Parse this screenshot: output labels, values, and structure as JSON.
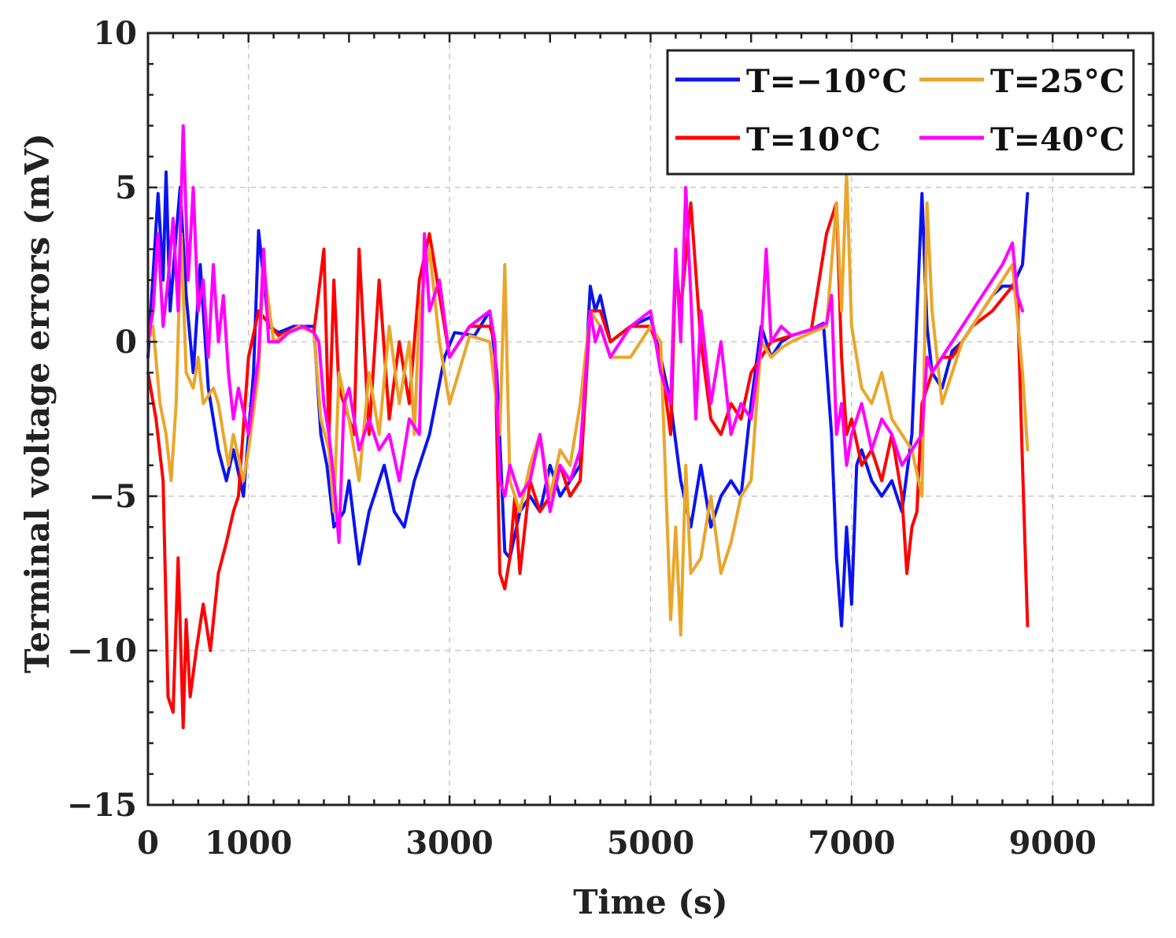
{
  "chart_data": {
    "type": "line",
    "xlabel": "Time (s)",
    "ylabel": "Terminal voltage errors (mV)",
    "xlim": [
      0,
      10000
    ],
    "ylim": [
      -15,
      10
    ],
    "xticks": [
      0,
      1000,
      3000,
      5000,
      7000,
      9000
    ],
    "xtick_labels": [
      "0",
      "1000",
      "3000",
      "5000",
      "7000",
      "9000"
    ],
    "xgrid": [
      1000,
      3000,
      5000,
      7000,
      9000
    ],
    "yticks": [
      10,
      5,
      0,
      -5,
      -10,
      -15
    ],
    "ytick_labels": [
      "10",
      "5",
      "0",
      "−5",
      "−10",
      "−15"
    ],
    "ygrid": [
      5,
      0,
      -5,
      -10
    ],
    "grid": true,
    "legend_position": "top-right",
    "series": [
      {
        "name": "T=−10°C",
        "color": "#0a14f0",
        "x": [
          0,
          100,
          150,
          180,
          220,
          280,
          320,
          380,
          450,
          520,
          600,
          700,
          780,
          850,
          950,
          1050,
          1100,
          1200,
          1300,
          1450,
          1650,
          1720,
          1780,
          1850,
          1950,
          2000,
          2100,
          2200,
          2350,
          2450,
          2550,
          2650,
          2800,
          2950,
          3050,
          3250,
          3400,
          3470,
          3550,
          3600,
          3700,
          3800,
          3900,
          4000,
          4100,
          4200,
          4300,
          4400,
          4450,
          4500,
          4600,
          4800,
          5000,
          5100,
          5200,
          5300,
          5400,
          5500,
          5600,
          5700,
          5800,
          5900,
          6000,
          6100,
          6200,
          6300,
          6400,
          6600,
          6720,
          6800,
          6850,
          6900,
          6950,
          7000,
          7050,
          7100,
          7200,
          7300,
          7400,
          7500,
          7600,
          7700,
          7750,
          7800,
          7900,
          8000,
          8100,
          8200,
          8300,
          8400,
          8500,
          8600,
          8700,
          8750
        ],
        "y": [
          -0.5,
          4.8,
          2.0,
          5.5,
          1.0,
          3.5,
          5.0,
          1.5,
          -1.0,
          2.5,
          -1.5,
          -3.5,
          -4.5,
          -3.5,
          -5.0,
          -1.0,
          3.6,
          0.5,
          0.3,
          0.5,
          0.5,
          -3.0,
          -4.0,
          -6.0,
          -5.5,
          -4.5,
          -7.2,
          -5.5,
          -4.0,
          -5.5,
          -6.0,
          -4.5,
          -3.0,
          -0.5,
          0.3,
          0.2,
          1.0,
          -1.0,
          -6.8,
          -7.0,
          -5.5,
          -5.0,
          -5.5,
          -4.0,
          -5.0,
          -4.5,
          -4.0,
          1.8,
          1.0,
          1.5,
          0.0,
          0.5,
          0.8,
          -0.5,
          -2.0,
          -4.5,
          -6.0,
          -4.0,
          -6.0,
          -5.0,
          -4.5,
          -5.0,
          -2.0,
          0.5,
          -0.5,
          0.0,
          0.2,
          0.4,
          0.6,
          -3.0,
          -7.0,
          -9.2,
          -6.0,
          -8.5,
          -4.0,
          -3.5,
          -4.5,
          -5.0,
          -4.5,
          -5.5,
          -3.0,
          4.8,
          0.5,
          -1.0,
          -1.5,
          -0.3,
          0.0,
          0.5,
          1.0,
          1.5,
          1.8,
          1.8,
          2.5,
          4.8
        ]
      },
      {
        "name": "T=10°C",
        "color": "#ff0000",
        "x": [
          0,
          80,
          150,
          200,
          250,
          300,
          350,
          380,
          420,
          480,
          550,
          620,
          700,
          780,
          850,
          900,
          1000,
          1100,
          1300,
          1500,
          1650,
          1750,
          1800,
          1850,
          1900,
          2000,
          2050,
          2100,
          2200,
          2300,
          2400,
          2500,
          2600,
          2700,
          2800,
          3000,
          3200,
          3400,
          3450,
          3500,
          3550,
          3600,
          3650,
          3700,
          3800,
          3900,
          4000,
          4100,
          4200,
          4300,
          4400,
          4500,
          4600,
          4800,
          5000,
          5100,
          5200,
          5250,
          5300,
          5400,
          5500,
          5600,
          5700,
          5800,
          5900,
          6000,
          6100,
          6200,
          6400,
          6600,
          6750,
          6850,
          6900,
          6950,
          7000,
          7100,
          7200,
          7300,
          7400,
          7500,
          7550,
          7600,
          7650,
          7700,
          7800,
          7900,
          8000,
          8200,
          8400,
          8600,
          8650,
          8700,
          8750
        ],
        "y": [
          -1.0,
          -2.5,
          -4.5,
          -11.5,
          -12.0,
          -7.0,
          -12.5,
          -9.0,
          -11.5,
          -10.0,
          -8.5,
          -10.0,
          -7.5,
          -6.5,
          -5.5,
          -5.0,
          -0.5,
          1.0,
          0.2,
          0.5,
          0.3,
          3.0,
          -3.0,
          2.0,
          -1.5,
          -2.5,
          -3.0,
          3.0,
          -3.0,
          2.0,
          -2.5,
          0.0,
          -2.0,
          2.0,
          3.5,
          -0.5,
          0.5,
          0.5,
          0.0,
          -7.5,
          -8.0,
          -7.0,
          -5.0,
          -7.5,
          -4.5,
          -5.5,
          -5.0,
          -4.0,
          -5.0,
          -4.5,
          1.0,
          1.0,
          0.0,
          0.5,
          0.5,
          -0.5,
          -3.0,
          2.5,
          1.0,
          4.5,
          0.0,
          -2.5,
          -3.0,
          -2.0,
          -2.5,
          -1.0,
          -0.5,
          0.0,
          0.2,
          0.4,
          3.5,
          4.5,
          -0.5,
          -3.0,
          -2.5,
          -4.0,
          -3.5,
          -4.5,
          -3.0,
          -5.0,
          -7.5,
          -6.0,
          -5.5,
          -2.0,
          -1.0,
          -0.5,
          -0.5,
          0.5,
          1.0,
          1.8,
          1.5,
          -4.0,
          -9.2
        ]
      },
      {
        "name": "T=25°C",
        "color": "#eaa62b",
        "x": [
          0,
          50,
          120,
          180,
          230,
          280,
          330,
          380,
          450,
          500,
          550,
          650,
          700,
          800,
          850,
          950,
          1000,
          1100,
          1150,
          1250,
          1350,
          1500,
          1650,
          1720,
          1800,
          1850,
          1900,
          2000,
          2100,
          2200,
          2300,
          2400,
          2500,
          2600,
          2650,
          2700,
          2800,
          2900,
          3000,
          3200,
          3400,
          3500,
          3550,
          3600,
          3700,
          3800,
          3900,
          4000,
          4100,
          4200,
          4300,
          4400,
          4500,
          4600,
          4800,
          5000,
          5100,
          5200,
          5250,
          5300,
          5350,
          5400,
          5500,
          5600,
          5700,
          5800,
          5900,
          6000,
          6100,
          6200,
          6300,
          6400,
          6600,
          6750,
          6850,
          6900,
          6950,
          7000,
          7050,
          7100,
          7200,
          7300,
          7400,
          7500,
          7600,
          7700,
          7750,
          7800,
          7900,
          8000,
          8100,
          8200,
          8300,
          8400,
          8500,
          8600,
          8700,
          8750
        ],
        "y": [
          0.0,
          0.5,
          -2.0,
          -3.0,
          -4.5,
          -2.0,
          3.5,
          -1.0,
          -1.5,
          -0.5,
          -2.0,
          -1.5,
          -2.0,
          -4.0,
          -3.0,
          -4.5,
          -3.5,
          -1.0,
          2.5,
          0.0,
          0.2,
          0.5,
          0.3,
          -2.5,
          -3.5,
          -5.5,
          -1.0,
          -2.5,
          -4.5,
          -1.0,
          -3.0,
          0.5,
          -2.0,
          0.0,
          -3.0,
          1.0,
          3.0,
          0.0,
          -2.0,
          0.2,
          0.0,
          -3.0,
          2.5,
          -4.5,
          -5.5,
          -4.0,
          -3.0,
          -5.0,
          -3.5,
          -4.0,
          -2.0,
          1.0,
          0.5,
          -0.5,
          -0.5,
          0.5,
          0.0,
          -9.0,
          -6.0,
          -9.5,
          -4.0,
          -7.5,
          -7.0,
          -5.0,
          -7.5,
          -6.5,
          -5.0,
          -4.5,
          0.0,
          -0.5,
          -0.2,
          0.0,
          0.3,
          0.5,
          4.5,
          1.0,
          5.5,
          0.5,
          -0.5,
          -1.5,
          -2.0,
          -1.0,
          -2.5,
          -3.0,
          -3.5,
          -5.0,
          4.5,
          1.0,
          -2.0,
          -1.0,
          0.0,
          0.5,
          1.0,
          1.5,
          2.0,
          2.5,
          -1.0,
          -3.5
        ]
      },
      {
        "name": "T=40°C",
        "color": "#ff00ff",
        "x": [
          0,
          50,
          100,
          150,
          200,
          250,
          300,
          350,
          400,
          450,
          500,
          550,
          600,
          650,
          700,
          750,
          800,
          850,
          900,
          1000,
          1100,
          1150,
          1200,
          1300,
          1400,
          1550,
          1650,
          1700,
          1750,
          1800,
          1850,
          1900,
          1950,
          2000,
          2100,
          2200,
          2300,
          2400,
          2500,
          2600,
          2700,
          2750,
          2800,
          2900,
          3000,
          3200,
          3400,
          3450,
          3500,
          3550,
          3600,
          3700,
          3800,
          3900,
          4000,
          4100,
          4200,
          4300,
          4400,
          4450,
          4500,
          4600,
          4800,
          5000,
          5100,
          5200,
          5250,
          5300,
          5350,
          5400,
          5450,
          5500,
          5600,
          5700,
          5800,
          5900,
          6000,
          6100,
          6150,
          6200,
          6300,
          6400,
          6600,
          6750,
          6800,
          6850,
          6900,
          6950,
          7000,
          7100,
          7200,
          7300,
          7400,
          7500,
          7600,
          7700,
          7750,
          7800,
          7900,
          8000,
          8100,
          8200,
          8300,
          8400,
          8500,
          8600,
          8650,
          8700
        ],
        "y": [
          0.0,
          1.0,
          3.5,
          0.5,
          2.0,
          4.0,
          1.0,
          7.0,
          2.0,
          5.0,
          1.0,
          2.0,
          -0.5,
          2.5,
          0.0,
          1.5,
          -1.0,
          -2.5,
          -1.5,
          -3.0,
          -0.5,
          3.0,
          0.0,
          0.0,
          0.3,
          0.5,
          0.3,
          0.0,
          -2.0,
          -3.0,
          -4.5,
          -6.5,
          -2.0,
          -1.5,
          -3.5,
          -2.5,
          -3.5,
          -3.0,
          -4.5,
          -2.5,
          -3.0,
          3.5,
          1.0,
          2.0,
          -0.5,
          0.5,
          1.0,
          0.0,
          -4.5,
          -5.0,
          -4.0,
          -5.0,
          -4.5,
          -3.0,
          -5.5,
          -4.0,
          -4.5,
          -3.5,
          1.0,
          0.0,
          0.5,
          -0.5,
          0.5,
          1.0,
          -1.0,
          -2.0,
          3.0,
          0.0,
          5.0,
          1.5,
          -2.5,
          1.0,
          -2.0,
          0.0,
          -3.0,
          -2.0,
          -2.5,
          0.0,
          3.0,
          0.0,
          0.5,
          0.2,
          0.4,
          0.6,
          1.5,
          -3.0,
          -2.0,
          -4.0,
          -3.0,
          -2.0,
          -3.5,
          -2.5,
          -3.0,
          -4.0,
          -3.5,
          -3.0,
          -0.5,
          -1.0,
          -0.5,
          0.0,
          0.5,
          1.0,
          1.5,
          2.0,
          2.5,
          3.2,
          1.5,
          1.0
        ]
      }
    ]
  }
}
